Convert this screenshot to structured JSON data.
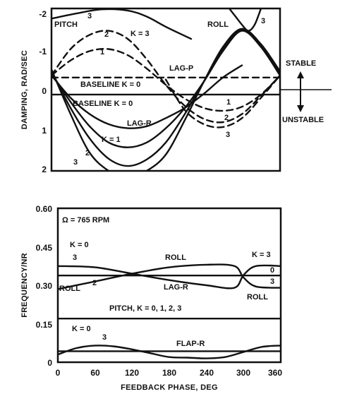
{
  "chart_data": [
    {
      "type": "line",
      "ylabel": "DAMPING, RAD/SEC",
      "xlim": [
        0,
        360
      ],
      "ylim": [
        -2,
        2
      ],
      "y_inverted": true,
      "yticks": [
        "-2",
        "-1",
        "0",
        "1",
        "2"
      ],
      "annotations": {
        "stable": "STABLE",
        "unstable": "UNSTABLE",
        "pitch": "PITCH",
        "roll": "ROLL",
        "lag_p": "LAG-P",
        "lag_r": "LAG-R",
        "baseline_upper": "BASELINE K = 0",
        "baseline_lower": "BASELINE K = 0",
        "k3": "K = 3",
        "k1": "K = 1",
        "pitch_k3": "3",
        "pitch_k2": "2",
        "pitch_k1": "1",
        "roll_k3": "3",
        "lagp_k1": "1",
        "lagp_k2": "2",
        "lagp_k3": "3",
        "lagr_k2": "2",
        "lagr_k3": "3"
      },
      "series": [
        {
          "name": "BASELINE K = 0",
          "style": "solid",
          "x": [
            0,
            360
          ],
          "y": [
            0.12,
            0.12
          ]
        },
        {
          "name": "BASELINE K = 0",
          "style": "dashed",
          "x": [
            0,
            360
          ],
          "y": [
            -0.3,
            -0.3
          ]
        },
        {
          "name": "1",
          "style": "dashed",
          "x": [
            0,
            30,
            60,
            90,
            120,
            150,
            180,
            210,
            240,
            270,
            300,
            330,
            360
          ],
          "y": [
            -0.35,
            -0.72,
            -0.95,
            -1.0,
            -0.85,
            -0.52,
            -0.12,
            0.22,
            0.45,
            0.52,
            0.42,
            0.12,
            -0.35
          ]
        },
        {
          "name": "2",
          "style": "dashed",
          "x": [
            0,
            30,
            60,
            90,
            120,
            150,
            180,
            210,
            240,
            270,
            300,
            330,
            360
          ],
          "y": [
            -0.35,
            -1.0,
            -1.35,
            -1.45,
            -1.25,
            -0.75,
            -0.12,
            0.4,
            0.72,
            0.8,
            0.6,
            0.15,
            -0.35
          ]
        },
        {
          "name": "3",
          "style": "solid",
          "x": [
            0,
            40,
            80,
            120,
            150,
            180,
            220
          ],
          "y": [
            -1.75,
            -1.88,
            -1.98,
            -1.95,
            -1.8,
            -1.55,
            -1.25
          ]
        },
        {
          "name": "3",
          "style": "dashed",
          "x": [
            180,
            210,
            240,
            270,
            300,
            330,
            360
          ],
          "y": [
            -0.25,
            0.5,
            0.85,
            0.92,
            0.7,
            0.2,
            -0.35
          ]
        },
        {
          "name": "LAG-R",
          "style": "solid",
          "x": [
            0,
            30,
            60,
            90,
            120,
            150,
            180,
            210,
            240,
            270,
            300
          ],
          "y": [
            -0.35,
            0.2,
            0.6,
            0.85,
            0.95,
            0.9,
            0.7,
            0.45,
            0.1,
            -0.3,
            -0.6
          ]
        },
        {
          "name": "K = 1",
          "style": "solid",
          "x": [
            0,
            30,
            60,
            90,
            120,
            150,
            180,
            210,
            240,
            270,
            300,
            330,
            360
          ],
          "y": [
            -0.4,
            0.3,
            0.9,
            1.3,
            1.42,
            1.3,
            0.95,
            0.45,
            -0.2,
            -0.95,
            -1.45,
            -1.05,
            -0.35
          ]
        },
        {
          "name": "2",
          "style": "solid",
          "x": [
            0,
            30,
            60,
            90,
            120,
            150,
            180,
            210,
            240,
            270,
            300,
            330,
            360
          ],
          "y": [
            -0.45,
            0.45,
            1.2,
            1.7,
            1.88,
            1.72,
            1.3,
            0.6,
            -0.2,
            -1.0,
            -1.48,
            -1.1,
            -0.4
          ]
        },
        {
          "name": "3",
          "style": "solid",
          "x": [
            0,
            30,
            60,
            90,
            120,
            150,
            180,
            210,
            240,
            270,
            300,
            330,
            360
          ],
          "y": [
            -0.5,
            0.6,
            1.55,
            2.0,
            2.2,
            2.0,
            1.6,
            0.75,
            -0.2,
            -1.05,
            -1.5,
            -1.12,
            -0.45
          ]
        },
        {
          "name": "ROLL",
          "style": "solid",
          "x": [
            280,
            290,
            300,
            310,
            320,
            330
          ],
          "y": [
            -2.0,
            -1.8,
            -1.6,
            -1.45,
            -1.6,
            -2.0
          ]
        }
      ]
    },
    {
      "type": "line",
      "xlabel": "FEEDBACK PHASE, DEG",
      "ylabel": "FREQUENCY/NR",
      "xlim": [
        0,
        360
      ],
      "ylim": [
        0,
        0.6
      ],
      "xticks": [
        "0",
        "60",
        "120",
        "180",
        "240",
        "300",
        "360"
      ],
      "yticks": [
        "0",
        "0.15",
        "0.30",
        "0.45",
        "0.60"
      ],
      "annotations": {
        "rpm": "Ω = 765 RPM",
        "k0_upper": "K = 0",
        "k3_upper": "3",
        "roll_left": "ROLL",
        "k2": "2",
        "roll_mid": "ROLL",
        "lag_r": "LAG-R",
        "k3_right": "K = 3",
        "zero_right": "0",
        "three_right": "3",
        "roll_right": "ROLL",
        "pitch": "PITCH, K = 0, 1, 2, 3",
        "k0_lower": "K = 0",
        "k3_lower": "3",
        "flap_r": "FLAP-R"
      },
      "series": [
        {
          "name": "ROLL",
          "x": [
            0,
            60,
            120,
            180,
            240,
            285,
            300,
            320,
            360
          ],
          "y": [
            0.375,
            0.37,
            0.345,
            0.32,
            0.3,
            0.29,
            0.34,
            0.375,
            0.375
          ]
        },
        {
          "name": "LAG-R",
          "x": [
            0,
            60,
            120,
            180,
            240,
            285,
            300,
            320,
            360
          ],
          "y": [
            0.285,
            0.315,
            0.345,
            0.37,
            0.38,
            0.375,
            0.33,
            0.295,
            0.29
          ]
        },
        {
          "name": "0",
          "x": [
            0,
            360
          ],
          "y": [
            0.338,
            0.338
          ]
        },
        {
          "name": "PITCH, K = 0, 1, 2, 3",
          "x": [
            0,
            360
          ],
          "y": [
            0.17,
            0.17
          ]
        },
        {
          "name": "FLAP-R",
          "x": [
            0,
            30,
            60,
            90,
            120,
            150,
            180,
            210,
            240,
            270,
            300,
            330,
            360
          ],
          "y": [
            0.03,
            0.055,
            0.065,
            0.062,
            0.05,
            0.035,
            0.02,
            0.018,
            0.015,
            0.02,
            0.04,
            0.06,
            0.065
          ]
        },
        {
          "name": "K = 0",
          "x": [
            0,
            360
          ],
          "y": [
            0.043,
            0.043
          ]
        }
      ]
    }
  ]
}
